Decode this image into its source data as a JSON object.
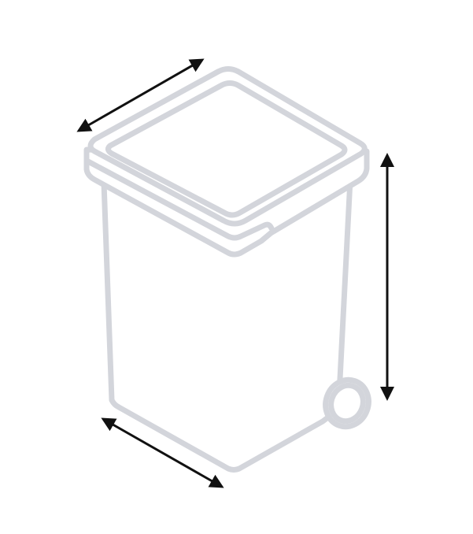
{
  "diagram": {
    "subject_icon": "wheelie-bin-icon",
    "dimension_arrows": [
      "width-arrow",
      "depth-arrow",
      "height-arrow"
    ],
    "colors": {
      "outline": "#d3d5db",
      "arrow": "#111111",
      "background": "#ffffff"
    }
  }
}
